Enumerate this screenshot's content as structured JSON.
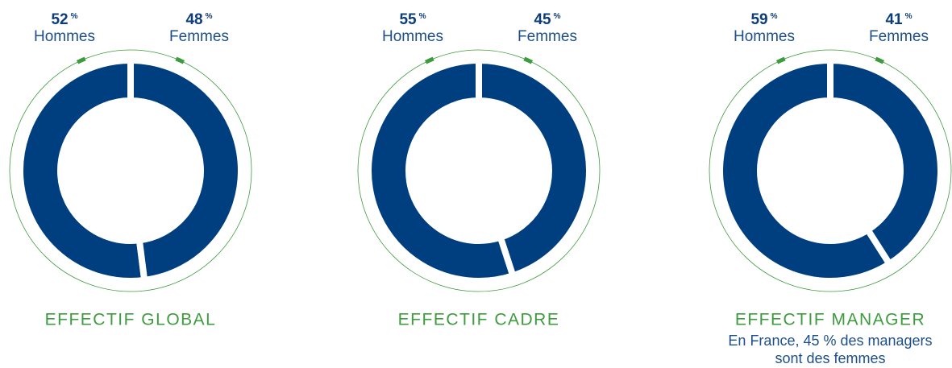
{
  "chart_data": [
    {
      "type": "pie",
      "title": "EFFECTIF GLOBAL",
      "categories": [
        "Hommes",
        "Femmes"
      ],
      "values": [
        52,
        48
      ],
      "unit": "%",
      "colors": [
        "#003f7f",
        "#003f7f"
      ]
    },
    {
      "type": "pie",
      "title": "EFFECTIF CADRE",
      "categories": [
        "Hommes",
        "Femmes"
      ],
      "values": [
        55,
        45
      ],
      "unit": "%",
      "colors": [
        "#003f7f",
        "#003f7f"
      ]
    },
    {
      "type": "pie",
      "title": "EFFECTIF MANAGER",
      "subtitle": [
        "En France, 45 % des managers",
        "sont des femmes"
      ],
      "categories": [
        "Hommes",
        "Femmes"
      ],
      "values": [
        59,
        41
      ],
      "unit": "%",
      "colors": [
        "#003f7f",
        "#003f7f"
      ]
    }
  ]
}
